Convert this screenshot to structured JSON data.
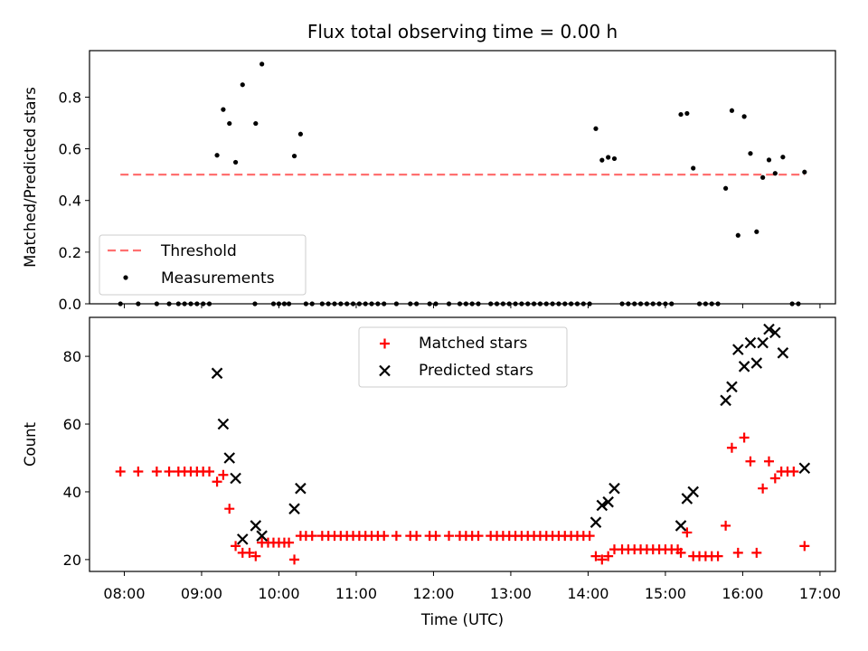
{
  "chart_data": [
    {
      "type": "scatter",
      "title": "Flux total observing time = 0.00 h",
      "xlabel": "",
      "ylabel": "Matched/Predicted stars",
      "xlim": [
        7.55,
        17.2
      ],
      "ylim": [
        0.0,
        0.98
      ],
      "yticks": [
        "0.0",
        "0.2",
        "0.4",
        "0.6",
        "0.8"
      ],
      "yticks_values": [
        0.0,
        0.2,
        0.4,
        0.6,
        0.8
      ],
      "threshold": {
        "name": "Threshold",
        "value": 0.5,
        "x_range": [
          7.95,
          16.8
        ],
        "color": "#ff7070"
      },
      "legend": [
        "Threshold",
        "Measurements"
      ],
      "series": [
        {
          "name": "Measurements",
          "color": "#000000",
          "points": [
            [
              7.95,
              0
            ],
            [
              8.18,
              0
            ],
            [
              8.42,
              0
            ],
            [
              8.58,
              0
            ],
            [
              8.7,
              0
            ],
            [
              8.78,
              0
            ],
            [
              8.86,
              0
            ],
            [
              8.94,
              0
            ],
            [
              9.02,
              0
            ],
            [
              9.1,
              0
            ],
            [
              9.2,
              0.575
            ],
            [
              9.28,
              0.752
            ],
            [
              9.36,
              0.698
            ],
            [
              9.44,
              0.548
            ],
            [
              9.53,
              0.848
            ],
            [
              9.69,
              0
            ],
            [
              9.7,
              0.698
            ],
            [
              9.78,
              0.928
            ],
            [
              9.93,
              0
            ],
            [
              10.0,
              0
            ],
            [
              10.07,
              0
            ],
            [
              10.13,
              0
            ],
            [
              10.2,
              0.572
            ],
            [
              10.28,
              0.657
            ],
            [
              10.35,
              0
            ],
            [
              10.43,
              0
            ],
            [
              10.56,
              0
            ],
            [
              10.64,
              0
            ],
            [
              10.72,
              0
            ],
            [
              10.8,
              0
            ],
            [
              10.88,
              0
            ],
            [
              10.96,
              0
            ],
            [
              11.04,
              0
            ],
            [
              11.12,
              0
            ],
            [
              11.2,
              0
            ],
            [
              11.28,
              0
            ],
            [
              11.36,
              0
            ],
            [
              11.52,
              0
            ],
            [
              11.7,
              0
            ],
            [
              11.78,
              0
            ],
            [
              11.95,
              0
            ],
            [
              12.03,
              0
            ],
            [
              12.2,
              0
            ],
            [
              12.34,
              0
            ],
            [
              12.42,
              0
            ],
            [
              12.5,
              0
            ],
            [
              12.58,
              0
            ],
            [
              12.74,
              0
            ],
            [
              12.82,
              0
            ],
            [
              12.9,
              0
            ],
            [
              12.98,
              0
            ],
            [
              13.06,
              0
            ],
            [
              13.14,
              0
            ],
            [
              13.22,
              0
            ],
            [
              13.3,
              0
            ],
            [
              13.38,
              0
            ],
            [
              13.46,
              0
            ],
            [
              13.54,
              0
            ],
            [
              13.62,
              0
            ],
            [
              13.7,
              0
            ],
            [
              13.78,
              0
            ],
            [
              13.86,
              0
            ],
            [
              13.94,
              0
            ],
            [
              14.02,
              0
            ],
            [
              14.1,
              0.678
            ],
            [
              14.18,
              0.556
            ],
            [
              14.26,
              0.567
            ],
            [
              14.34,
              0.562
            ],
            [
              14.44,
              0
            ],
            [
              14.52,
              0
            ],
            [
              14.6,
              0
            ],
            [
              14.68,
              0
            ],
            [
              14.76,
              0
            ],
            [
              14.84,
              0
            ],
            [
              14.92,
              0
            ],
            [
              15.0,
              0
            ],
            [
              15.08,
              0
            ],
            [
              15.2,
              0.733
            ],
            [
              15.28,
              0.737
            ],
            [
              15.36,
              0.525
            ],
            [
              15.44,
              0
            ],
            [
              15.52,
              0
            ],
            [
              15.6,
              0
            ],
            [
              15.68,
              0
            ],
            [
              15.78,
              0.447
            ],
            [
              15.86,
              0.748
            ],
            [
              15.94,
              0.265
            ],
            [
              16.02,
              0.725
            ],
            [
              16.1,
              0.582
            ],
            [
              16.18,
              0.279
            ],
            [
              16.26,
              0.489
            ],
            [
              16.34,
              0.557
            ],
            [
              16.42,
              0.505
            ],
            [
              16.52,
              0.568
            ],
            [
              16.64,
              0
            ],
            [
              16.72,
              0
            ],
            [
              16.8,
              0.51
            ]
          ]
        }
      ]
    },
    {
      "type": "scatter",
      "title": "",
      "xlabel": "Time (UTC)",
      "ylabel": "Count",
      "xlim": [
        7.55,
        17.2
      ],
      "ylim": [
        16.5,
        91.5
      ],
      "yticks": [
        "20",
        "40",
        "60",
        "80"
      ],
      "yticks_values": [
        20,
        40,
        60,
        80
      ],
      "xticks": [
        "08:00",
        "09:00",
        "10:00",
        "11:00",
        "12:00",
        "13:00",
        "14:00",
        "15:00",
        "16:00",
        "17:00"
      ],
      "xticks_values": [
        8,
        9,
        10,
        11,
        12,
        13,
        14,
        15,
        16,
        17
      ],
      "legend": [
        "Matched stars",
        "Predicted stars"
      ],
      "series": [
        {
          "name": "Matched stars",
          "marker": "plus",
          "color": "#ff0000",
          "points": [
            [
              7.95,
              46
            ],
            [
              8.18,
              46
            ],
            [
              8.42,
              46
            ],
            [
              8.58,
              46
            ],
            [
              8.7,
              46
            ],
            [
              8.78,
              46
            ],
            [
              8.86,
              46
            ],
            [
              8.94,
              46
            ],
            [
              9.02,
              46
            ],
            [
              9.1,
              46
            ],
            [
              9.2,
              43
            ],
            [
              9.28,
              45
            ],
            [
              9.36,
              35
            ],
            [
              9.44,
              24
            ],
            [
              9.53,
              22
            ],
            [
              9.62,
              22
            ],
            [
              9.7,
              21
            ],
            [
              9.78,
              25
            ],
            [
              9.86,
              25
            ],
            [
              9.93,
              25
            ],
            [
              10.0,
              25
            ],
            [
              10.07,
              25
            ],
            [
              10.13,
              25
            ],
            [
              10.2,
              20
            ],
            [
              10.28,
              27
            ],
            [
              10.35,
              27
            ],
            [
              10.43,
              27
            ],
            [
              10.56,
              27
            ],
            [
              10.64,
              27
            ],
            [
              10.72,
              27
            ],
            [
              10.8,
              27
            ],
            [
              10.88,
              27
            ],
            [
              10.96,
              27
            ],
            [
              11.04,
              27
            ],
            [
              11.12,
              27
            ],
            [
              11.2,
              27
            ],
            [
              11.28,
              27
            ],
            [
              11.36,
              27
            ],
            [
              11.52,
              27
            ],
            [
              11.7,
              27
            ],
            [
              11.78,
              27
            ],
            [
              11.95,
              27
            ],
            [
              12.03,
              27
            ],
            [
              12.2,
              27
            ],
            [
              12.34,
              27
            ],
            [
              12.42,
              27
            ],
            [
              12.5,
              27
            ],
            [
              12.58,
              27
            ],
            [
              12.74,
              27
            ],
            [
              12.82,
              27
            ],
            [
              12.9,
              27
            ],
            [
              12.98,
              27
            ],
            [
              13.06,
              27
            ],
            [
              13.14,
              27
            ],
            [
              13.22,
              27
            ],
            [
              13.3,
              27
            ],
            [
              13.38,
              27
            ],
            [
              13.46,
              27
            ],
            [
              13.54,
              27
            ],
            [
              13.62,
              27
            ],
            [
              13.7,
              27
            ],
            [
              13.78,
              27
            ],
            [
              13.86,
              27
            ],
            [
              13.94,
              27
            ],
            [
              14.02,
              27
            ],
            [
              14.1,
              21
            ],
            [
              14.18,
              20
            ],
            [
              14.26,
              21
            ],
            [
              14.34,
              23
            ],
            [
              14.44,
              23
            ],
            [
              14.52,
              23
            ],
            [
              14.6,
              23
            ],
            [
              14.68,
              23
            ],
            [
              14.76,
              23
            ],
            [
              14.84,
              23
            ],
            [
              14.92,
              23
            ],
            [
              15.0,
              23
            ],
            [
              15.08,
              23
            ],
            [
              15.16,
              23
            ],
            [
              15.2,
              22
            ],
            [
              15.28,
              28
            ],
            [
              15.36,
              21
            ],
            [
              15.44,
              21
            ],
            [
              15.52,
              21
            ],
            [
              15.6,
              21
            ],
            [
              15.68,
              21
            ],
            [
              15.78,
              30
            ],
            [
              15.86,
              53
            ],
            [
              15.94,
              22
            ],
            [
              16.02,
              56
            ],
            [
              16.1,
              49
            ],
            [
              16.18,
              22
            ],
            [
              16.26,
              41
            ],
            [
              16.34,
              49
            ],
            [
              16.42,
              44
            ],
            [
              16.5,
              46
            ],
            [
              16.58,
              46
            ],
            [
              16.66,
              46
            ],
            [
              16.8,
              24
            ]
          ]
        },
        {
          "name": "Predicted stars",
          "marker": "x",
          "color": "#000000",
          "points": [
            [
              9.2,
              75
            ],
            [
              9.28,
              60
            ],
            [
              9.36,
              50
            ],
            [
              9.44,
              44
            ],
            [
              9.53,
              26
            ],
            [
              9.7,
              30
            ],
            [
              9.78,
              27
            ],
            [
              10.2,
              35
            ],
            [
              10.28,
              41
            ],
            [
              14.1,
              31
            ],
            [
              14.18,
              36
            ],
            [
              14.26,
              37
            ],
            [
              14.34,
              41
            ],
            [
              15.2,
              30
            ],
            [
              15.28,
              38
            ],
            [
              15.36,
              40
            ],
            [
              15.78,
              67
            ],
            [
              15.86,
              71
            ],
            [
              15.94,
              82
            ],
            [
              16.02,
              77
            ],
            [
              16.1,
              84
            ],
            [
              16.18,
              78
            ],
            [
              16.26,
              84
            ],
            [
              16.34,
              88
            ],
            [
              16.42,
              87
            ],
            [
              16.52,
              81
            ],
            [
              16.8,
              47
            ]
          ]
        }
      ]
    }
  ]
}
